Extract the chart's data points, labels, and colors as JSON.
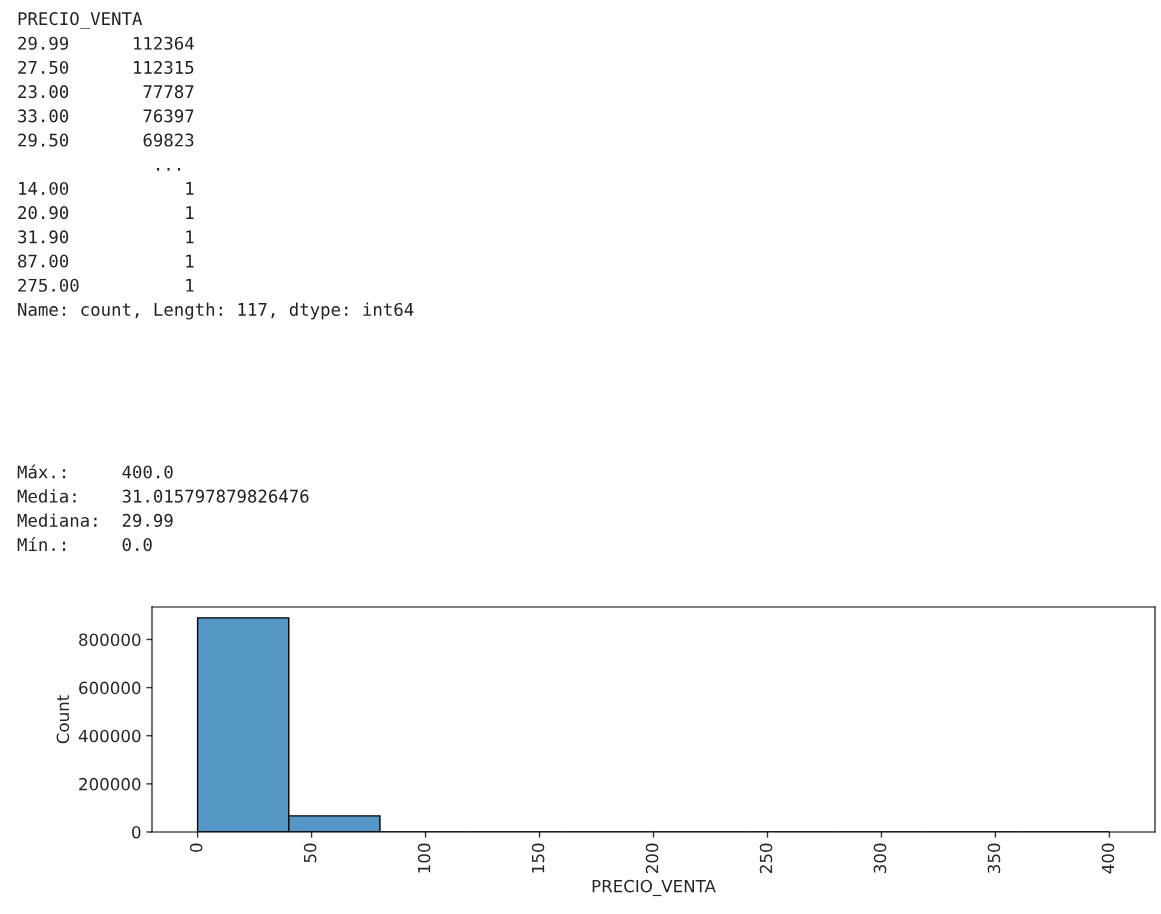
{
  "chart_data": {
    "type": "histogram",
    "xlabel": "PRECIO_VENTA",
    "ylabel": "Count",
    "bins": [
      0,
      40,
      80,
      120,
      160,
      200,
      240,
      280,
      320,
      360,
      400
    ],
    "values": [
      890000,
      67000,
      0,
      0,
      0,
      0,
      0,
      0,
      0,
      0
    ],
    "color": "#5598c7",
    "xlim": [
      -20,
      420
    ],
    "xticks": [
      0,
      50,
      100,
      150,
      200,
      250,
      300,
      350,
      400
    ],
    "ylim": [
      0,
      935000
    ],
    "yticks": [
      0,
      200000,
      400000,
      600000,
      800000
    ],
    "grid": false,
    "annotations": [
      "PRECIO_VENTA\n29.99      112364\n27.50      112315\n23.00       77787\n33.00       76397\n29.50       69823\n             ...\n14.00           1\n20.90           1\n31.90           1\n87.00           1\n275.00          1\nName: count, Length: 117, dtype: int64",
      "Máx.:     400.0\nMedia:    31.015797879826476\nMediana:  29.99\nMín.:     0.0"
    ]
  }
}
